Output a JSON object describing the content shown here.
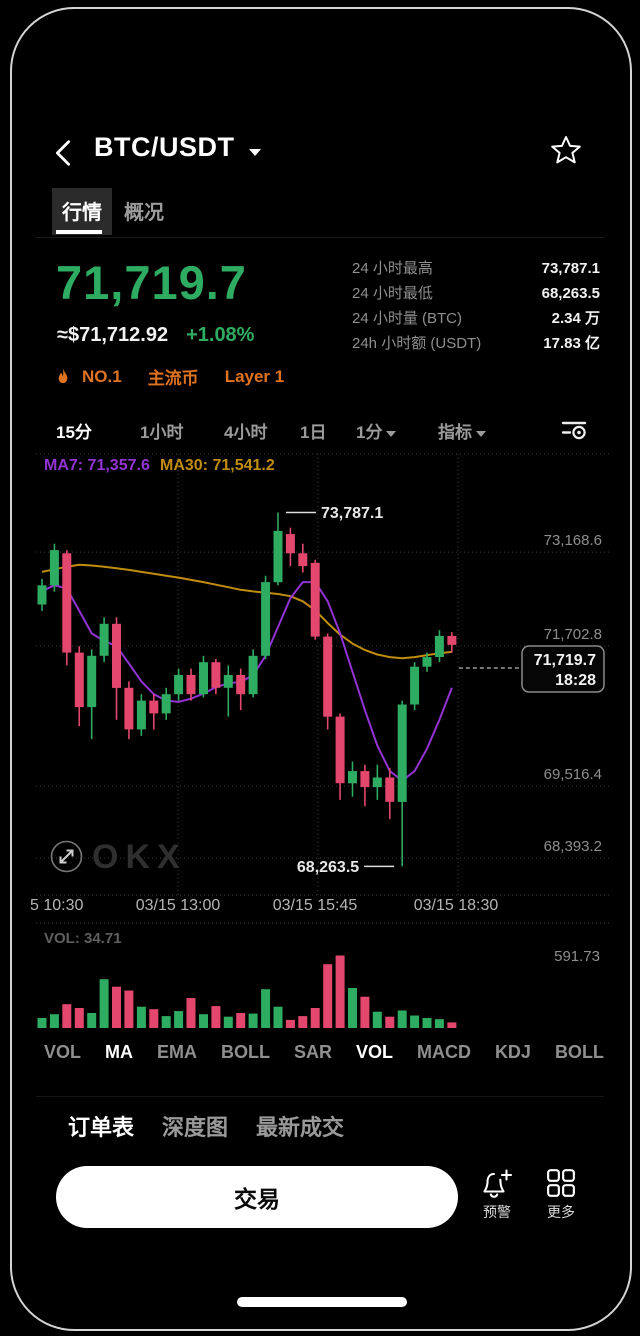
{
  "colors": {
    "up": "#2eac62",
    "down": "#e4476e",
    "ma7": "#9333d4",
    "ma30": "#c08d0e",
    "tag_orange": "#e0731f",
    "price_green": "#2eac62"
  },
  "header": {
    "title": "BTC/USDT"
  },
  "tabs": {
    "market": "行情",
    "overview": "概况"
  },
  "price": {
    "last": "71,719.7",
    "fiat": "≈$71,712.92",
    "change": "+1.08%"
  },
  "tags": {
    "rank": "NO.1",
    "tag1": "主流币",
    "tag2": "Layer 1"
  },
  "stats": {
    "rows": [
      {
        "label": "24 小时最高",
        "value": "73,787.1"
      },
      {
        "label": "24 小时最低",
        "value": "68,263.5"
      },
      {
        "label": "24 小时量 (BTC)",
        "value": "2.34 万"
      },
      {
        "label": "24h 小时额 (USDT)",
        "value": "17.83 亿"
      }
    ]
  },
  "timeframes": {
    "items": [
      "15分",
      "1小时",
      "4小时",
      "1日"
    ],
    "active": "15分",
    "dropdown": "1分",
    "indicator": "指标"
  },
  "chart_data": {
    "type": "candlestick",
    "symbol": "BTC/USDT",
    "interval": "15分",
    "ma_labels": {
      "ma7": "MA7: 71,357.6",
      "ma30": "MA30: 71,541.2"
    },
    "y_axis_labels": [
      "73,168.6",
      "71,702.8",
      "69,516.4",
      "68,393.2"
    ],
    "y_axis_values": [
      73168.6,
      71702.8,
      69516.4,
      68393.2
    ],
    "x_axis_labels": [
      "5 10:30",
      "03/15 13:00",
      "03/15 15:45",
      "03/15 18:30"
    ],
    "high_annotation": "73,787.1",
    "high_value": 73787.1,
    "high_idx": 19,
    "low_annotation": "68,263.5",
    "low_value": 68263.5,
    "low_idx": 29,
    "price_tag": {
      "price": "71,719.7",
      "time": "18:28"
    },
    "vol_label": "VOL: 34.71",
    "vol_axis": "591.73",
    "vol_max": 591.73,
    "candles": [
      [
        72350,
        72750,
        72250,
        72650
      ],
      [
        72650,
        73300,
        72550,
        73200
      ],
      [
        73150,
        73200,
        71400,
        71600
      ],
      [
        71600,
        71700,
        70450,
        70750
      ],
      [
        70750,
        71650,
        70250,
        71550
      ],
      [
        71550,
        72150,
        71450,
        72050
      ],
      [
        72050,
        72150,
        70550,
        71050
      ],
      [
        71050,
        71150,
        70250,
        70400
      ],
      [
        70400,
        70950,
        70300,
        70850
      ],
      [
        70850,
        70950,
        70400,
        70650
      ],
      [
        70650,
        71050,
        70550,
        70950
      ],
      [
        70950,
        71350,
        70850,
        71250
      ],
      [
        71250,
        71350,
        70850,
        70950
      ],
      [
        70950,
        71550,
        70900,
        71450
      ],
      [
        71450,
        71500,
        70950,
        71050
      ],
      [
        71050,
        71400,
        70600,
        71250
      ],
      [
        71250,
        71350,
        70700,
        70950
      ],
      [
        70950,
        71650,
        70900,
        71550
      ],
      [
        71550,
        72800,
        71500,
        72700
      ],
      [
        72700,
        73787.1,
        72650,
        73500
      ],
      [
        73450,
        73550,
        72950,
        73150
      ],
      [
        73150,
        73300,
        72850,
        72950
      ],
      [
        73000,
        73050,
        71800,
        71850
      ],
      [
        71850,
        71900,
        70400,
        70600
      ],
      [
        70600,
        70650,
        69300,
        69560
      ],
      [
        69560,
        69900,
        69350,
        69750
      ],
      [
        69750,
        69850,
        69200,
        69500
      ],
      [
        69500,
        69850,
        69300,
        69650
      ],
      [
        69650,
        69800,
        69000,
        69270
      ],
      [
        69270,
        70850,
        68263.5,
        70790
      ],
      [
        70790,
        71450,
        70700,
        71380
      ],
      [
        71380,
        71600,
        71300,
        71530
      ],
      [
        71530,
        71950,
        71450,
        71860
      ],
      [
        71860,
        71920,
        71600,
        71719.7
      ]
    ],
    "ma7": [
      72560,
      72650,
      72600,
      72250,
      71900,
      71780,
      71700,
      71430,
      71150,
      70950,
      70850,
      70830,
      70880,
      70960,
      71060,
      71120,
      71140,
      71250,
      71550,
      72000,
      72450,
      72700,
      72700,
      72400,
      71900,
      71300,
      70700,
      70150,
      69750,
      69600,
      69750,
      70100,
      70550,
      71050
    ],
    "ma30": [
      72860,
      72900,
      72940,
      72970,
      72960,
      72940,
      72915,
      72890,
      72860,
      72830,
      72800,
      72770,
      72735,
      72700,
      72660,
      72620,
      72580,
      72555,
      72535,
      72515,
      72480,
      72400,
      72260,
      72060,
      71880,
      71740,
      71640,
      71570,
      71530,
      71510,
      71530,
      71560,
      71590,
      71610
    ],
    "volumes": [
      80,
      110,
      190,
      160,
      120,
      390,
      330,
      300,
      170,
      150,
      95,
      135,
      240,
      110,
      175,
      90,
      120,
      115,
      310,
      170,
      65,
      95,
      160,
      510,
      580,
      320,
      250,
      130,
      90,
      140,
      100,
      80,
      70,
      45
    ]
  },
  "watermark": "OKX",
  "indicators": {
    "items": [
      {
        "label": "VOL",
        "active": false
      },
      {
        "label": "MA",
        "active": true
      },
      {
        "label": "EMA",
        "active": false
      },
      {
        "label": "BOLL",
        "active": false
      },
      {
        "label": "SAR",
        "active": false
      },
      {
        "label": "VOL",
        "active": true
      },
      {
        "label": "MACD",
        "active": false
      },
      {
        "label": "KDJ",
        "active": false
      },
      {
        "label": "BOLL",
        "active": false
      }
    ]
  },
  "orderbook": {
    "tabs": [
      "订单表",
      "深度图",
      "最新成交"
    ]
  },
  "footer": {
    "trade": "交易",
    "alert": "预警",
    "more": "更多"
  }
}
